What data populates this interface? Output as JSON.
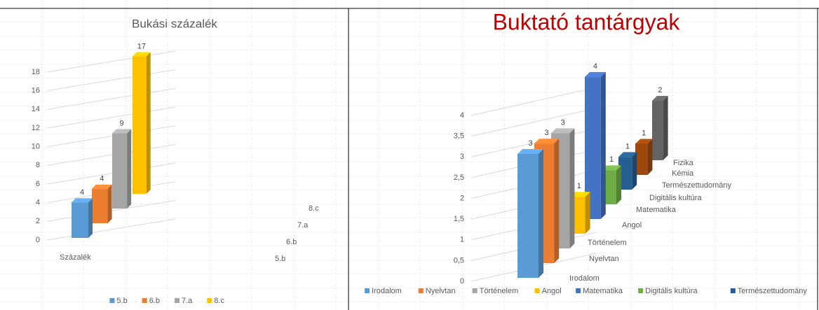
{
  "chart_data": [
    {
      "type": "bar3d",
      "title": "Bukási százalék",
      "categories": [
        "Százalék"
      ],
      "series": [
        {
          "name": "5.b",
          "color": "#5b9bd5",
          "values": [
            4
          ]
        },
        {
          "name": "6.b",
          "color": "#ed7d31",
          "values": [
            4
          ]
        },
        {
          "name": "7.a",
          "color": "#a5a5a5",
          "values": [
            9
          ]
        },
        {
          "name": "8.c",
          "color": "#ffc000",
          "values": [
            17
          ]
        }
      ],
      "ylim": [
        0,
        18
      ],
      "yticks": [
        0,
        2,
        4,
        6,
        8,
        10,
        12,
        14,
        16,
        18
      ],
      "grid": true,
      "legend": "bottom"
    },
    {
      "type": "bar3d",
      "title": "Buktató tantárgyak",
      "categories": [
        null
      ],
      "series": [
        {
          "name": "Irodalom",
          "color": "#5b9bd5",
          "values": [
            3
          ]
        },
        {
          "name": "Nyelvtan",
          "color": "#ed7d31",
          "values": [
            3
          ]
        },
        {
          "name": "Történelem",
          "color": "#a5a5a5",
          "values": [
            3
          ]
        },
        {
          "name": "Angol",
          "color": "#ffc000",
          "values": [
            1
          ]
        },
        {
          "name": "Matematika",
          "color": "#4472c4",
          "values": [
            4
          ]
        },
        {
          "name": "Digitális kultúra",
          "color": "#70ad47",
          "values": [
            1
          ]
        },
        {
          "name": "Természettudomány",
          "color": "#255e91",
          "values": [
            1
          ]
        },
        {
          "name": "Kémia",
          "color": "#9e480e",
          "values": [
            1
          ]
        },
        {
          "name": "Fizika",
          "color": "#636363",
          "values": [
            2
          ]
        }
      ],
      "ylim": [
        0,
        4
      ],
      "yticks": [
        0,
        {
          "value": 0.5,
          "label": "0,5"
        },
        1,
        {
          "value": 1.5,
          "label": "1,5"
        },
        2,
        {
          "value": 2.5,
          "label": "2,5"
        },
        3,
        {
          "value": 3.5,
          "label": "3,5"
        },
        4
      ],
      "grid": true,
      "legend": "bottom"
    }
  ]
}
